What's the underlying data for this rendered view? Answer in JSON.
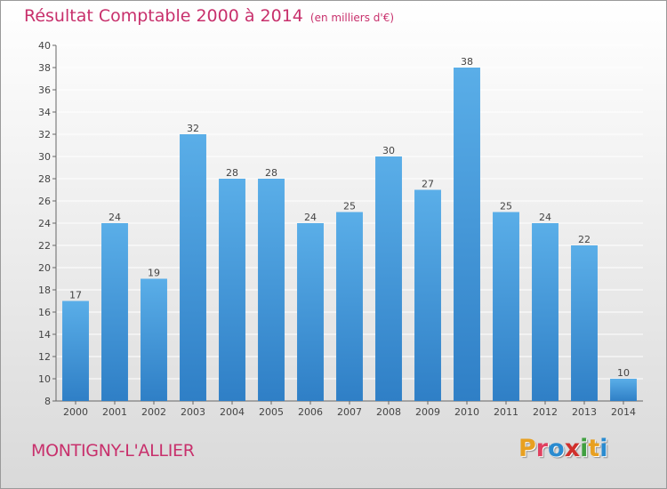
{
  "page": {
    "title": "Résultat Comptable 2000 à 2014",
    "subtitle": "(en milliers d'€)",
    "commune": "MONTIGNY-L'ALLIER",
    "logo_text": "Proxiti"
  },
  "colors": {
    "title": "#c8306c",
    "bar_top": "#5aaee8",
    "bar_bottom": "#2f7fc6",
    "grid": "#ffffff",
    "logo_letters": [
      "#e8a020",
      "#e04060",
      "#2a8bd0",
      "#d0302c",
      "#40a040",
      "#e8a020",
      "#2a8bd0"
    ]
  },
  "chart_data": {
    "type": "bar",
    "categories": [
      "2000",
      "2001",
      "2002",
      "2003",
      "2004",
      "2005",
      "2006",
      "2007",
      "2008",
      "2009",
      "2010",
      "2011",
      "2012",
      "2013",
      "2014"
    ],
    "values": [
      17,
      24,
      19,
      32,
      28,
      28,
      24,
      25,
      30,
      27,
      38,
      25,
      24,
      22,
      10
    ],
    "ylim": [
      8,
      40
    ],
    "yticks": [
      8,
      10,
      12,
      14,
      16,
      18,
      20,
      22,
      24,
      26,
      28,
      30,
      32,
      34,
      36,
      38,
      40
    ],
    "grid": true
  }
}
